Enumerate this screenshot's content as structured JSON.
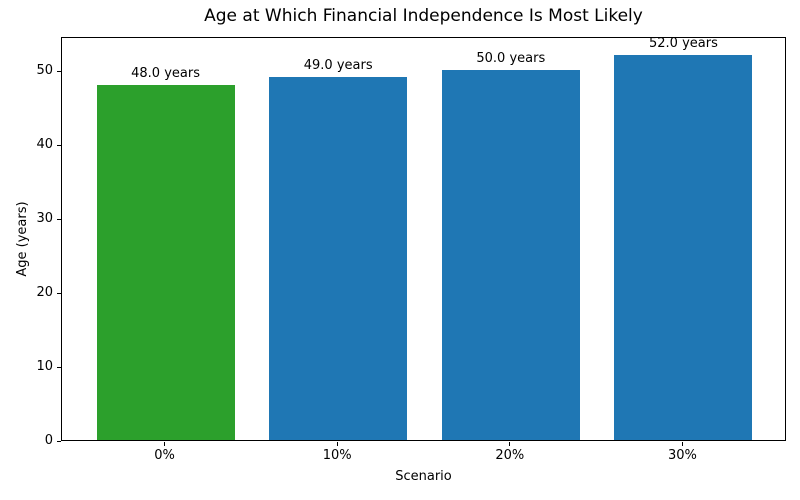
{
  "chart_data": {
    "type": "bar",
    "title": "Age at Which Financial Independence Is Most Likely",
    "xlabel": "Scenario",
    "ylabel": "Age (years)",
    "categories": [
      "0%",
      "10%",
      "20%",
      "30%"
    ],
    "values": [
      48.0,
      49.0,
      50.0,
      52.0
    ],
    "bar_labels": [
      "48.0 years",
      "49.0 years",
      "50.0 years",
      "52.0 years"
    ],
    "bar_colors": [
      "#2ca02c",
      "#1f77b4",
      "#1f77b4",
      "#1f77b4"
    ],
    "ylim": [
      0,
      54.6
    ],
    "yticks": [
      0,
      10,
      20,
      30,
      40,
      50
    ],
    "grid": false,
    "legend_position": "none",
    "background_color": "#ffffff",
    "axis_color": "#000000"
  }
}
